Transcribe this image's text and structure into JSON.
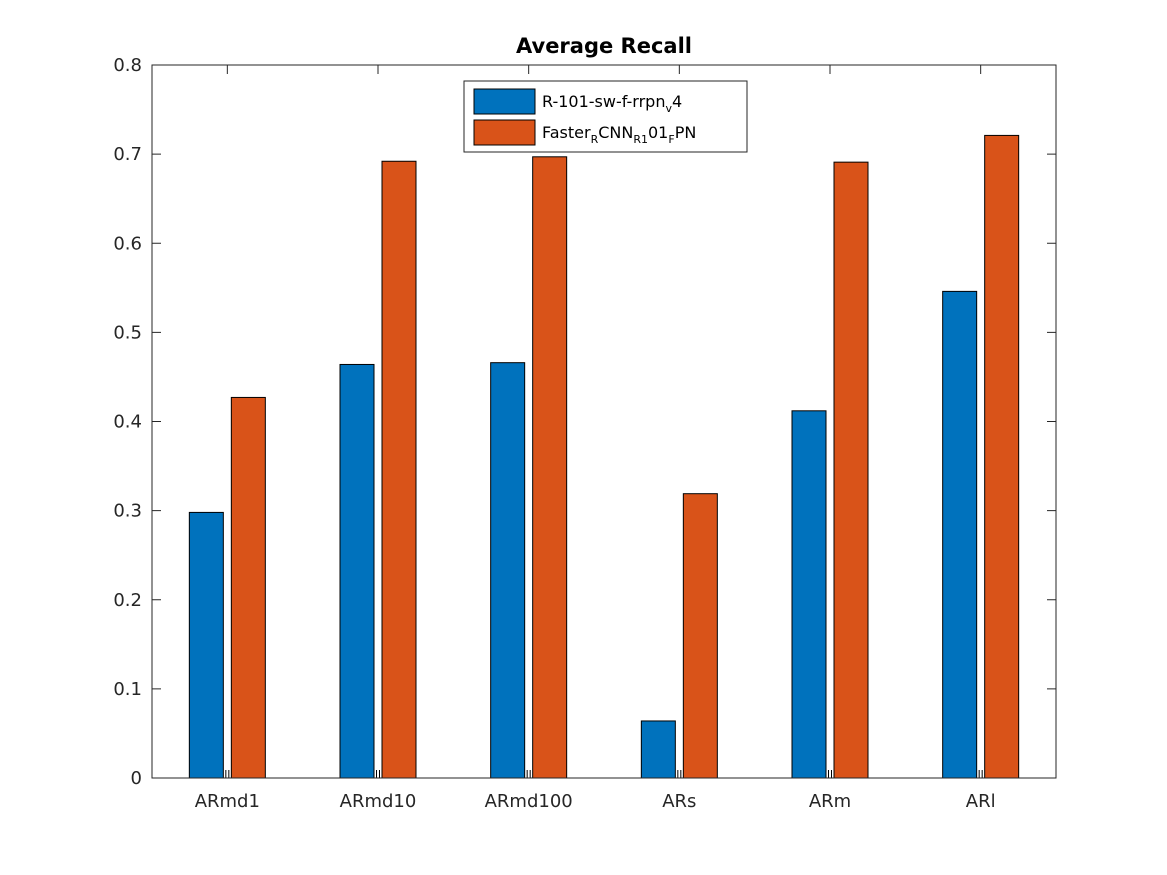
{
  "chart_data": {
    "type": "bar",
    "title": "Average Recall",
    "categories": [
      "ARmd1",
      "ARmd10",
      "ARmd100",
      "ARs",
      "ARm",
      "ARl"
    ],
    "series": [
      {
        "name": "R-101-sw-f-rrpn_v4",
        "name_parts": [
          [
            "R-101-sw-f-rrpn",
            "base"
          ],
          [
            "v",
            "sub"
          ],
          [
            "4",
            "base"
          ]
        ],
        "color": "#0072BD",
        "values": [
          0.298,
          0.464,
          0.466,
          0.064,
          0.412,
          0.546
        ]
      },
      {
        "name": "Faster_RCNN_R101_FPN",
        "name_parts": [
          [
            "Faster",
            "base"
          ],
          [
            "R",
            "sub"
          ],
          [
            "CNN",
            "base"
          ],
          [
            "R1",
            "sub"
          ],
          [
            "01",
            "base"
          ],
          [
            "F",
            "sub"
          ],
          [
            "PN",
            "base"
          ]
        ],
        "color": "#D95319",
        "values": [
          0.427,
          0.692,
          0.697,
          0.319,
          0.691,
          0.721
        ]
      }
    ],
    "ylim": [
      0,
      0.8
    ],
    "yticks": [
      0,
      0.1,
      0.2,
      0.3,
      0.4,
      0.5,
      0.6,
      0.7,
      0.8
    ],
    "ytick_labels": [
      "0",
      "0.1",
      "0.2",
      "0.3",
      "0.4",
      "0.5",
      "0.6",
      "0.7",
      "0.8"
    ],
    "xlabel": "",
    "ylabel": "",
    "grid": false,
    "legend_position": "top-center"
  }
}
